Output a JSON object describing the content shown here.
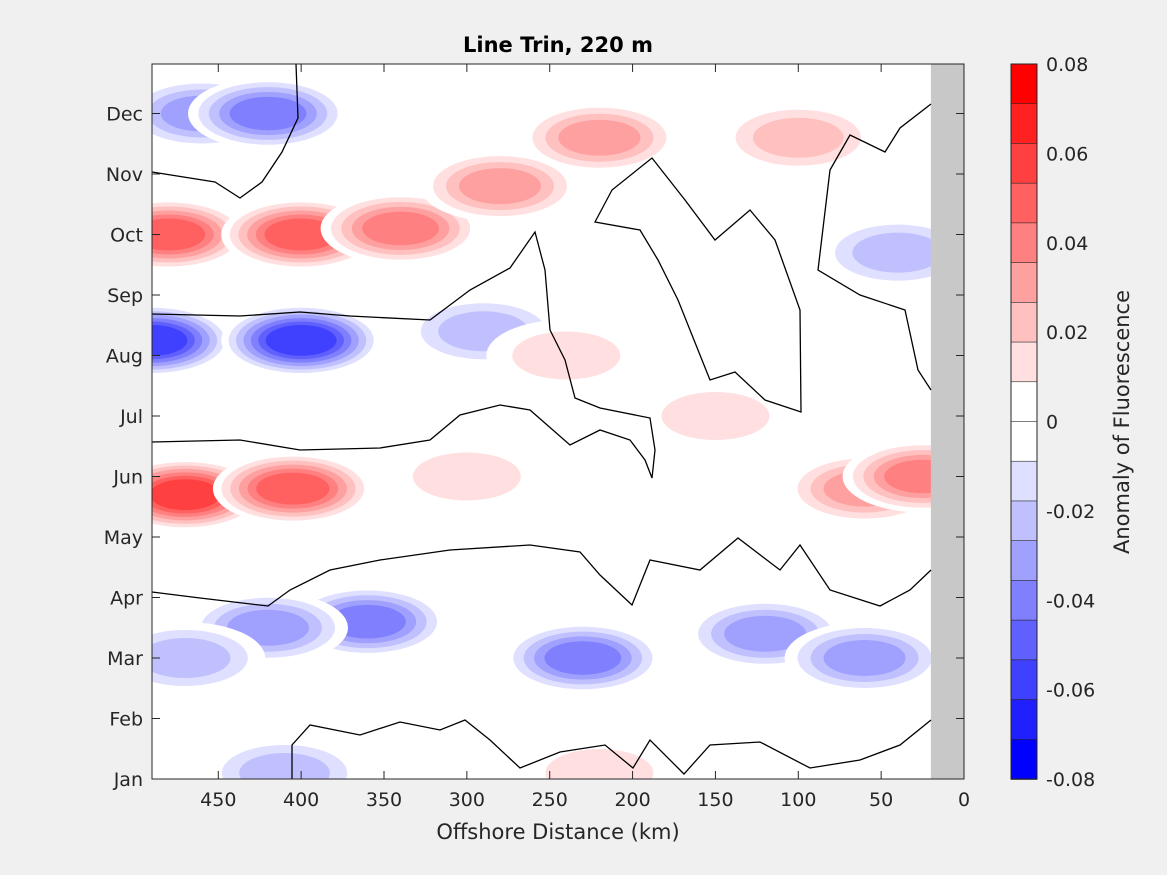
{
  "chart_data": {
    "type": "heatmap",
    "title": "Line Trin, 220 m",
    "xlabel": "Offshore Distance (km)",
    "colorbar_label": "Anomaly of Fluorescence",
    "x_reversed": true,
    "xlim": [
      0,
      490
    ],
    "no_data_xlim": [
      0,
      20
    ],
    "x_ticks": [
      450,
      400,
      350,
      300,
      250,
      200,
      150,
      100,
      50,
      0
    ],
    "y_ticks": [
      "Jan",
      "Feb",
      "Mar",
      "Apr",
      "May",
      "Jun",
      "Jul",
      "Aug",
      "Sep",
      "Oct",
      "Nov",
      "Dec"
    ],
    "colorbar_ticks": [
      "0.08",
      "0.06",
      "0.04",
      "0.02",
      "0",
      "-0.02",
      "-0.04",
      "-0.06",
      "-0.08"
    ],
    "color_levels": [
      -0.08,
      -0.07,
      -0.06,
      -0.05,
      -0.04,
      -0.03,
      -0.02,
      -0.01,
      0,
      0.01,
      0.02,
      0.03,
      0.04,
      0.05,
      0.06,
      0.07,
      0.08
    ],
    "colormap": [
      "#0000ff",
      "#2020ff",
      "#4040ff",
      "#6060ff",
      "#8080ff",
      "#a0a0ff",
      "#c0c0ff",
      "#dfdfff",
      "#ffffff",
      "#ffffff",
      "#ffdfdf",
      "#ffc0c0",
      "#ffa0a0",
      "#ff8080",
      "#ff6060",
      "#ff4040",
      "#ff2020",
      "#ff0000"
    ],
    "no_data_color": "#c8c8c8",
    "zero_contour_color": "#000000",
    "anomaly_features": [
      {
        "x": 470,
        "month": 4.7,
        "value": 0.065
      },
      {
        "x": 405,
        "month": 4.8,
        "value": 0.06
      },
      {
        "x": 300,
        "month": 5.0,
        "value": 0.015
      },
      {
        "x": 60,
        "month": 4.8,
        "value": 0.04
      },
      {
        "x": 25,
        "month": 5.0,
        "value": 0.045
      },
      {
        "x": 490,
        "month": 7.25,
        "value": -0.065
      },
      {
        "x": 400,
        "month": 7.25,
        "value": -0.07
      },
      {
        "x": 290,
        "month": 7.4,
        "value": -0.03
      },
      {
        "x": 480,
        "month": 9.0,
        "value": 0.055
      },
      {
        "x": 400,
        "month": 9.0,
        "value": 0.06
      },
      {
        "x": 340,
        "month": 9.1,
        "value": 0.05
      },
      {
        "x": 280,
        "month": 9.8,
        "value": 0.04
      },
      {
        "x": 220,
        "month": 10.6,
        "value": 0.04
      },
      {
        "x": 100,
        "month": 10.6,
        "value": 0.025
      },
      {
        "x": 460,
        "month": 11.0,
        "value": -0.04
      },
      {
        "x": 420,
        "month": 11.0,
        "value": -0.045
      },
      {
        "x": 360,
        "month": 2.6,
        "value": -0.05
      },
      {
        "x": 420,
        "month": 2.5,
        "value": -0.035
      },
      {
        "x": 230,
        "month": 2.0,
        "value": -0.045
      },
      {
        "x": 120,
        "month": 2.4,
        "value": -0.04
      },
      {
        "x": 60,
        "month": 2.0,
        "value": -0.035
      },
      {
        "x": 470,
        "month": 2.0,
        "value": -0.03
      },
      {
        "x": 40,
        "month": 8.7,
        "value": -0.025
      },
      {
        "x": 240,
        "month": 7.0,
        "value": 0.015
      },
      {
        "x": 150,
        "month": 6.0,
        "value": 0.015
      },
      {
        "x": 410,
        "month": 0.1,
        "value": -0.025
      },
      {
        "x": 220,
        "month": 0.1,
        "value": 0.015
      }
    ]
  }
}
